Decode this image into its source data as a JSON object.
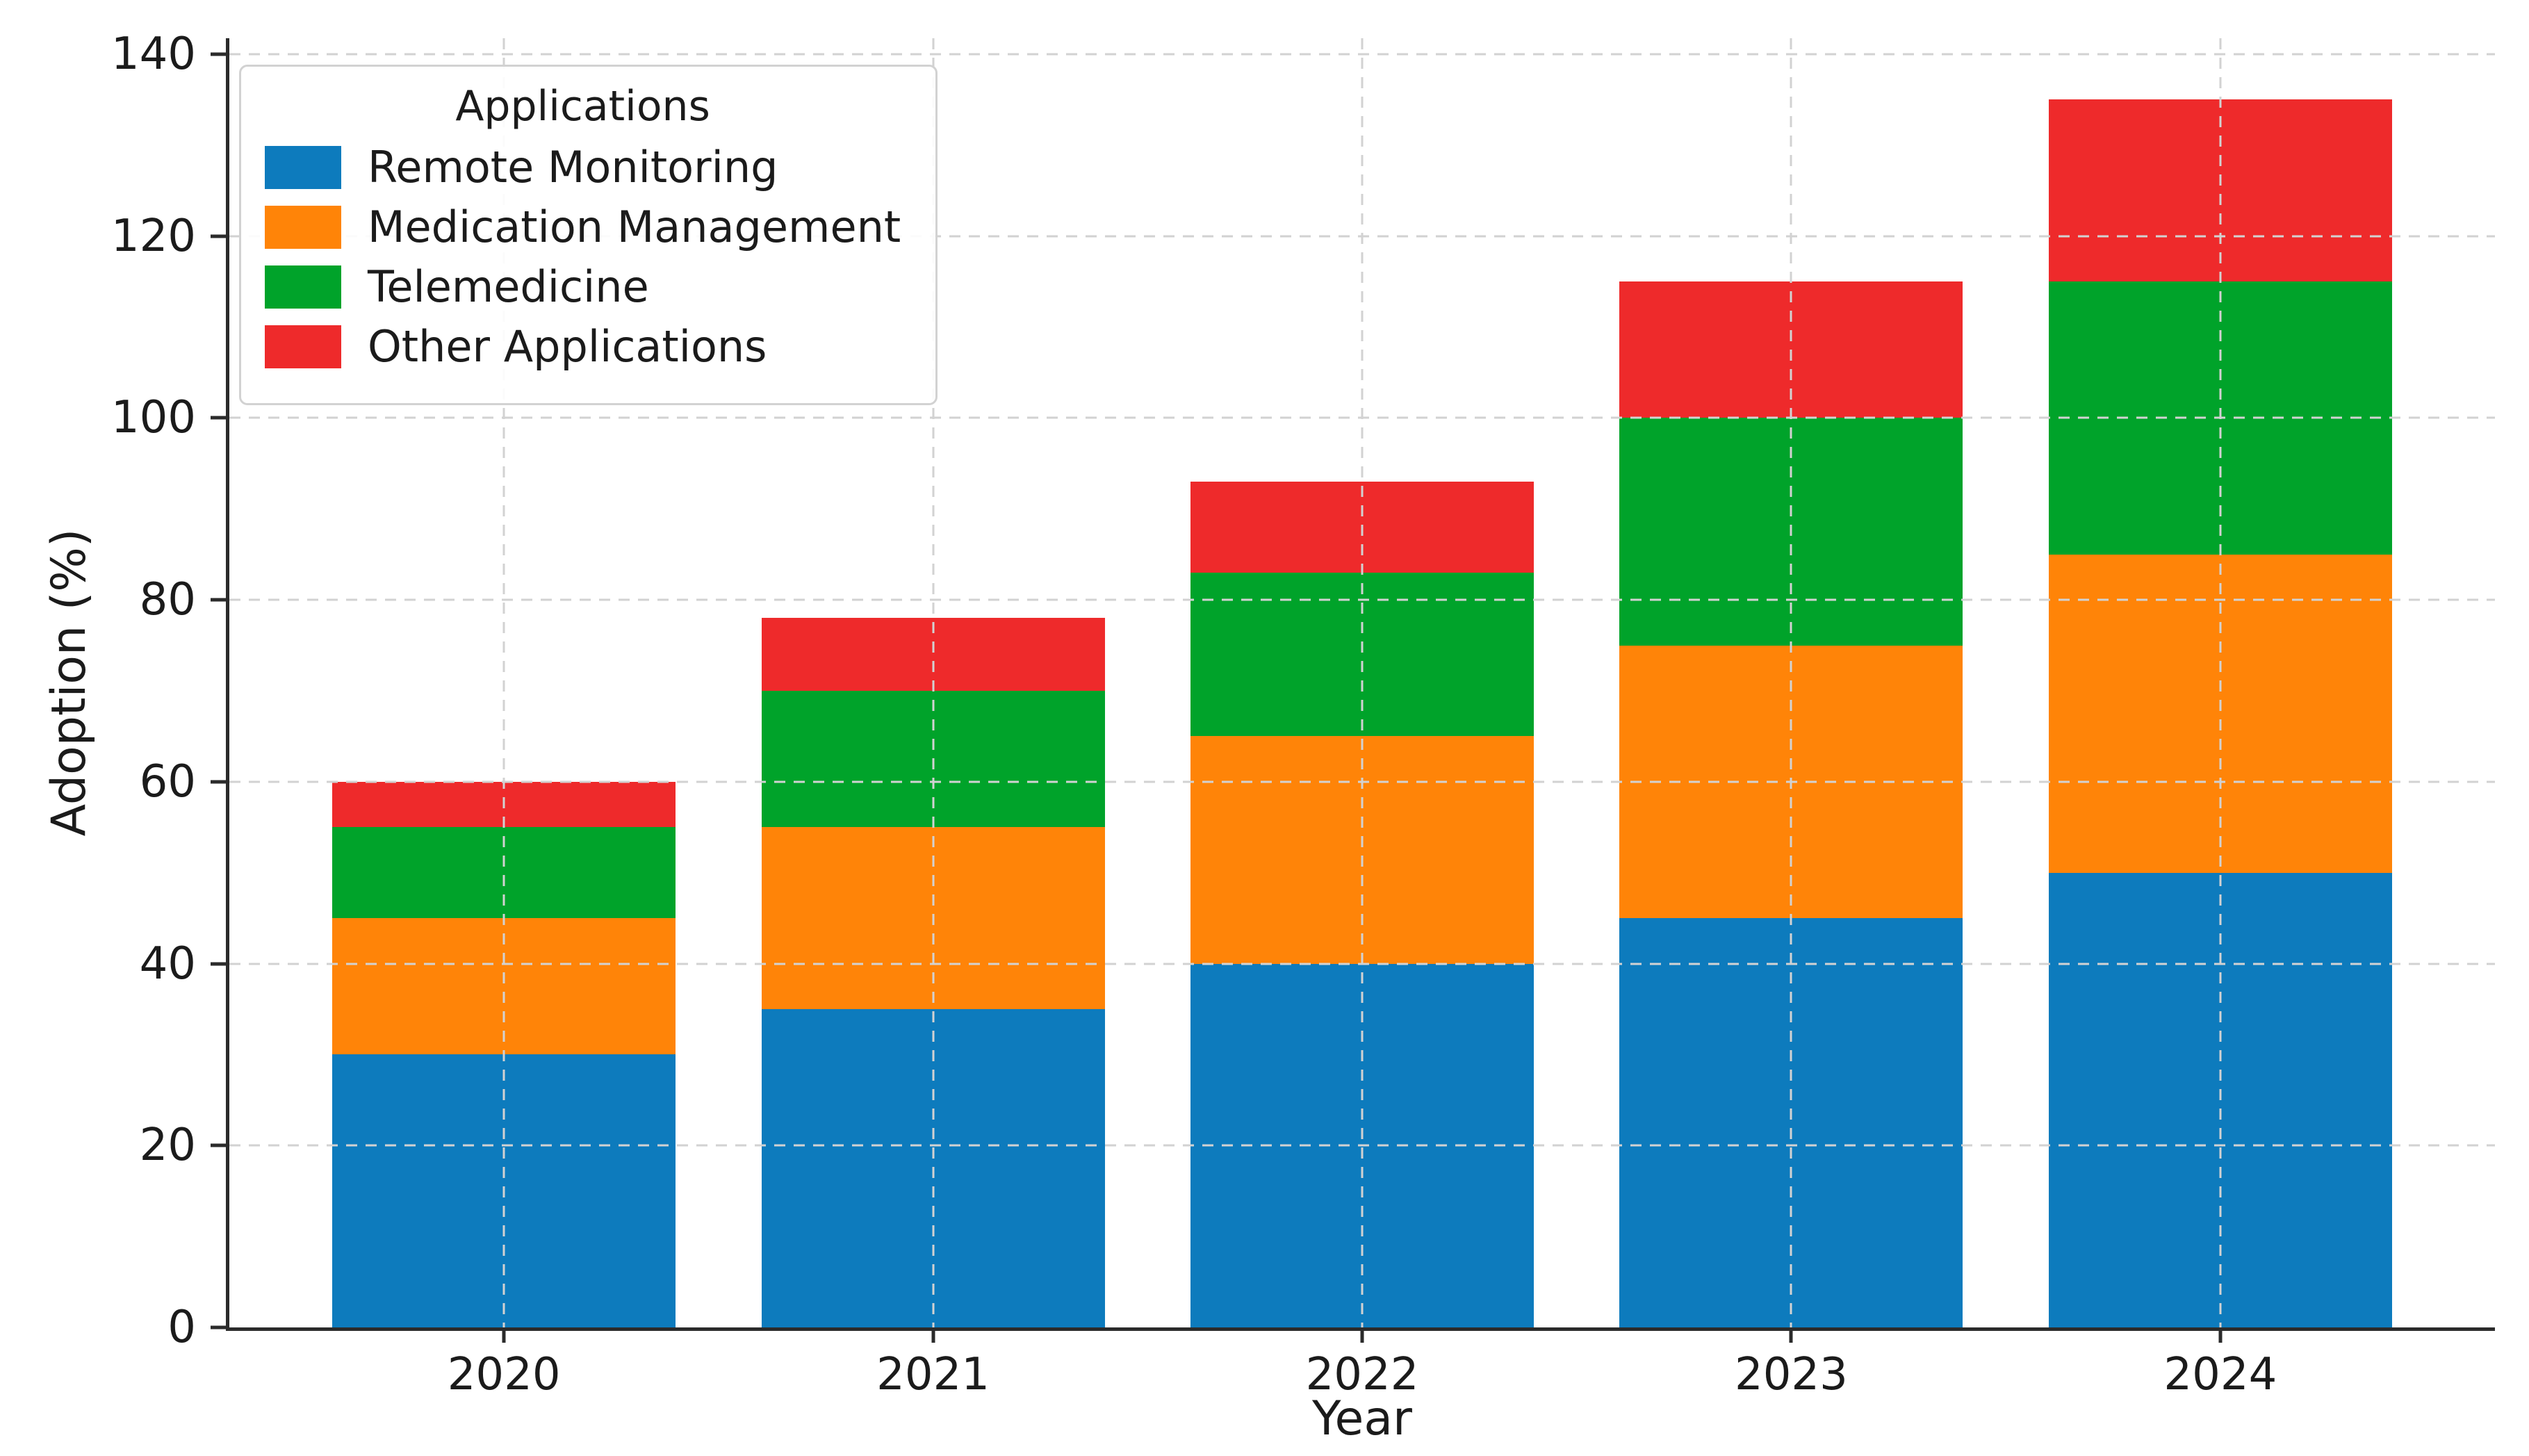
{
  "chart_data": {
    "type": "bar",
    "stacked": true,
    "title": "",
    "xlabel": "Year",
    "ylabel": "Adoption (%)",
    "legend_title": "Applications",
    "legend_position": "upper-left",
    "categories": [
      "2020",
      "2021",
      "2022",
      "2023",
      "2024"
    ],
    "series": [
      {
        "name": "Remote Monitoring",
        "color": "#0d7bbd",
        "values": [
          30,
          35,
          40,
          45,
          50
        ]
      },
      {
        "name": "Medication Management",
        "color": "#ff8408",
        "values": [
          15,
          20,
          25,
          30,
          35
        ]
      },
      {
        "name": "Telemedicine",
        "color": "#00a32a",
        "values": [
          10,
          15,
          18,
          25,
          30
        ]
      },
      {
        "name": "Other Applications",
        "color": "#ee2a2b",
        "values": [
          5,
          8,
          10,
          15,
          20
        ]
      }
    ],
    "stack_totals": [
      60,
      78,
      93,
      115,
      135
    ],
    "ylim": [
      0,
      140
    ],
    "yticks": [
      0,
      20,
      40,
      60,
      80,
      100,
      120,
      140
    ],
    "grid": "dashed, both axes, drawn over bars",
    "bar_width_fraction": 0.8
  },
  "style": {
    "grid_color": "#d2d2d2",
    "axis_color": "#2b2b2b",
    "text_color": "#1b1b1b",
    "background": "#ffffff"
  }
}
